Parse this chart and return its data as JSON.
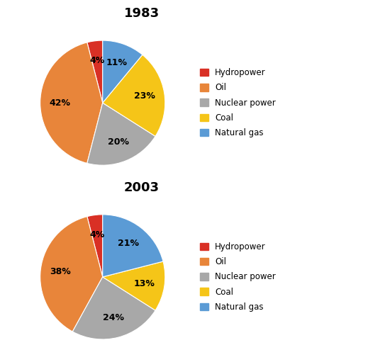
{
  "chart1": {
    "title": "1983",
    "labels": [
      "Hydropower",
      "Oil",
      "Nuclear power",
      "Coal",
      "Natural gas"
    ],
    "values": [
      4,
      42,
      20,
      23,
      11
    ],
    "colors": [
      "#d93025",
      "#e8853a",
      "#a8a8a8",
      "#f5c518",
      "#5b9bd5"
    ],
    "startangle": 90
  },
  "chart2": {
    "title": "2003",
    "labels": [
      "Hydropower",
      "Oil",
      "Nuclear power",
      "Coal",
      "Natural gas"
    ],
    "values": [
      4,
      38,
      24,
      13,
      21
    ],
    "colors": [
      "#d93025",
      "#e8853a",
      "#a8a8a8",
      "#f5c518",
      "#5b9bd5"
    ],
    "startangle": 90
  },
  "legend_labels": [
    "Hydropower",
    "Oil",
    "Nuclear power",
    "Coal",
    "Natural gas"
  ],
  "legend_colors": [
    "#d93025",
    "#e8853a",
    "#a8a8a8",
    "#f5c518",
    "#5b9bd5"
  ],
  "title_fontsize": 13,
  "label_fontsize": 9,
  "legend_fontsize": 8.5,
  "background_color": "#ffffff",
  "divider_color": "#e0e0e0"
}
